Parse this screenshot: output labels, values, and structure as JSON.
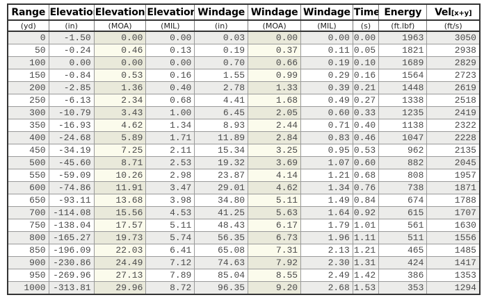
{
  "chart_data": {
    "type": "table",
    "title": "",
    "columns": [
      {
        "name": "Range",
        "unit": "(yd)"
      },
      {
        "name": "Elevation",
        "unit": "(in)"
      },
      {
        "name": "Elevation",
        "unit": "(MOA)",
        "tint": true
      },
      {
        "name": "Elevation",
        "unit": "(MIL)"
      },
      {
        "name": "Windage",
        "unit": "(in)"
      },
      {
        "name": "Windage",
        "unit": "(MOA)",
        "tint": true
      },
      {
        "name": "Windage",
        "unit": "(MIL)"
      },
      {
        "name": "Time",
        "unit": "(s)"
      },
      {
        "name": "Energy",
        "unit": "(ft.lbf)"
      },
      {
        "name": "Vel",
        "name_suffix": "[x+y]",
        "unit": "(ft/s)"
      }
    ],
    "rows": [
      [
        "0",
        "-1.50",
        "0.00",
        "0.00",
        "0.03",
        "0.00",
        "0.00",
        "0.00",
        "1963",
        "3050"
      ],
      [
        "50",
        "-0.24",
        "0.46",
        "0.13",
        "0.19",
        "0.37",
        "0.11",
        "0.05",
        "1821",
        "2938"
      ],
      [
        "100",
        "0.00",
        "0.00",
        "0.00",
        "0.70",
        "0.66",
        "0.19",
        "0.10",
        "1689",
        "2829"
      ],
      [
        "150",
        "-0.84",
        "0.53",
        "0.16",
        "1.55",
        "0.99",
        "0.29",
        "0.16",
        "1564",
        "2723"
      ],
      [
        "200",
        "-2.85",
        "1.36",
        "0.40",
        "2.78",
        "1.33",
        "0.39",
        "0.21",
        "1448",
        "2619"
      ],
      [
        "250",
        "-6.13",
        "2.34",
        "0.68",
        "4.41",
        "1.68",
        "0.49",
        "0.27",
        "1338",
        "2518"
      ],
      [
        "300",
        "-10.79",
        "3.43",
        "1.00",
        "6.45",
        "2.05",
        "0.60",
        "0.33",
        "1235",
        "2419"
      ],
      [
        "350",
        "-16.93",
        "4.62",
        "1.34",
        "8.93",
        "2.44",
        "0.71",
        "0.40",
        "1138",
        "2322"
      ],
      [
        "400",
        "-24.68",
        "5.89",
        "1.71",
        "11.89",
        "2.84",
        "0.83",
        "0.46",
        "1047",
        "2228"
      ],
      [
        "450",
        "-34.19",
        "7.25",
        "2.11",
        "15.34",
        "3.25",
        "0.95",
        "0.53",
        "962",
        "2135"
      ],
      [
        "500",
        "-45.60",
        "8.71",
        "2.53",
        "19.32",
        "3.69",
        "1.07",
        "0.60",
        "882",
        "2045"
      ],
      [
        "550",
        "-59.09",
        "10.26",
        "2.98",
        "23.87",
        "4.14",
        "1.21",
        "0.68",
        "808",
        "1957"
      ],
      [
        "600",
        "-74.86",
        "11.91",
        "3.47",
        "29.01",
        "4.62",
        "1.34",
        "0.76",
        "738",
        "1871"
      ],
      [
        "650",
        "-93.11",
        "13.68",
        "3.98",
        "34.80",
        "5.11",
        "1.49",
        "0.84",
        "674",
        "1788"
      ],
      [
        "700",
        "-114.08",
        "15.56",
        "4.53",
        "41.25",
        "5.63",
        "1.64",
        "0.92",
        "615",
        "1707"
      ],
      [
        "750",
        "-138.04",
        "17.57",
        "5.11",
        "48.43",
        "6.17",
        "1.79",
        "1.01",
        "561",
        "1630"
      ],
      [
        "800",
        "-165.27",
        "19.73",
        "5.74",
        "56.35",
        "6.73",
        "1.96",
        "1.11",
        "511",
        "1556"
      ],
      [
        "850",
        "-196.09",
        "22.03",
        "6.41",
        "65.08",
        "7.31",
        "2.13",
        "1.21",
        "465",
        "1485"
      ],
      [
        "900",
        "-230.86",
        "24.49",
        "7.12",
        "74.63",
        "7.92",
        "2.30",
        "1.31",
        "424",
        "1417"
      ],
      [
        "950",
        "-269.96",
        "27.13",
        "7.89",
        "85.04",
        "8.55",
        "2.49",
        "1.42",
        "386",
        "1353"
      ],
      [
        "1000",
        "-313.81",
        "29.96",
        "8.72",
        "96.35",
        "9.20",
        "2.68",
        "1.53",
        "353",
        "1294"
      ]
    ]
  },
  "colors": {
    "outer_border": "#333333",
    "grid_line": "#999999",
    "header_text": "#000000",
    "data_text": "#4a4a4a",
    "row_stripe": "#ececea",
    "tint_on_white": "#fbfbec",
    "tint_on_stripe": "#e9e9da"
  }
}
